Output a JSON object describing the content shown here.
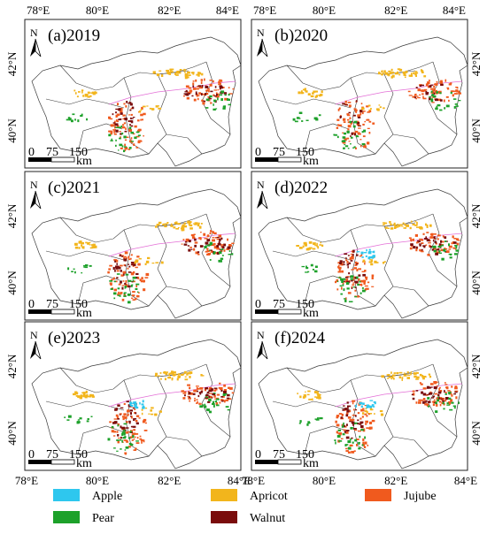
{
  "panels": [
    {
      "label": "(a)2019"
    },
    {
      "label": "(b)2020"
    },
    {
      "label": "(c)2021"
    },
    {
      "label": "(d)2022"
    },
    {
      "label": "(e)2023"
    },
    {
      "label": "(f)2024"
    }
  ],
  "axes": {
    "x_ticks": [
      "78°E",
      "80°E",
      "82°E",
      "84°E"
    ],
    "y_ticks": [
      "42°N",
      "40°N"
    ]
  },
  "north_label": "N",
  "scale_bar": {
    "ticks": [
      "0",
      "75",
      "150"
    ],
    "unit": "km"
  },
  "legend": [
    {
      "name": "Apple",
      "color": "#2ec7ee"
    },
    {
      "name": "Apricot",
      "color": "#f2b51c"
    },
    {
      "name": "Jujube",
      "color": "#f05a1e"
    },
    {
      "name": "Pear",
      "color": "#1da12a"
    },
    {
      "name": "Walnut",
      "color": "#7a0c0c"
    }
  ]
}
